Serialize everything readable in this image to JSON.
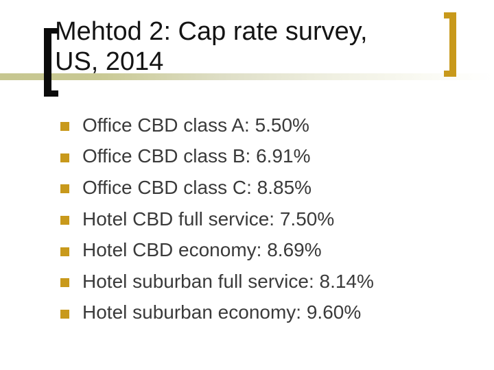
{
  "slide": {
    "title": {
      "lines": [
        "Mehtod 2: Cap rate survey,",
        "US, 2014"
      ]
    },
    "bullets": [
      "Office CBD class A: 5.50%",
      "Office CBD class B: 6.91%",
      "Office CBD class C: 8.85%",
      "Hotel CBD full service: 7.50%",
      "Hotel CBD economy: 8.69%",
      "Hotel suburban full service: 8.14%",
      "Hotel suburban economy: 9.60%"
    ],
    "colors": {
      "gold": "#C8991B",
      "band_khaki": "#C6C690",
      "title_text": "#141414",
      "body_text": "#3A3A3A"
    }
  }
}
